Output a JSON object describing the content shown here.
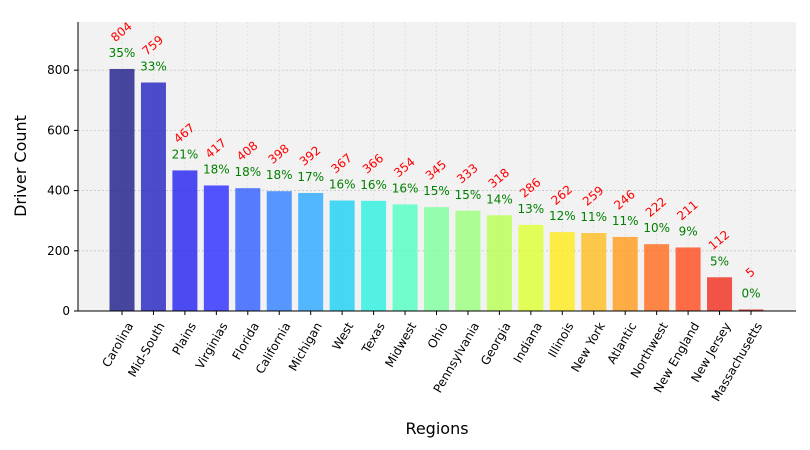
{
  "chart_data": {
    "type": "bar",
    "xlabel": "Regions",
    "ylabel": "Driver Count",
    "ylim": [
      0,
      960
    ],
    "yticks": [
      0,
      200,
      400,
      600,
      800
    ],
    "grid": true,
    "categories": [
      "Carolina",
      "Mid-South",
      "Plains",
      "Virginias",
      "Florida",
      "California",
      "Michigan",
      "West",
      "Texas",
      "Midwest",
      "Ohio",
      "Pennsylvania",
      "Georgia",
      "Indiana",
      "Illinois",
      "New York",
      "Atlantic",
      "Northwest",
      "New England",
      "New Jersey",
      "Massachusetts"
    ],
    "values": [
      804,
      759,
      467,
      417,
      408,
      398,
      392,
      367,
      366,
      354,
      345,
      333,
      318,
      286,
      262,
      259,
      246,
      222,
      211,
      112,
      5
    ],
    "value_labels": [
      "804",
      "759",
      "467",
      "417",
      "408",
      "398",
      "392",
      "367",
      "366",
      "354",
      "345",
      "333",
      "318",
      "286",
      "262",
      "259",
      "246",
      "222",
      "211",
      "112",
      "5"
    ],
    "percent_labels": [
      "35%",
      "33%",
      "21%",
      "18%",
      "18%",
      "18%",
      "17%",
      "16%",
      "16%",
      "16%",
      "15%",
      "15%",
      "14%",
      "13%",
      "12%",
      "11%",
      "11%",
      "10%",
      "9%",
      "5%",
      "0%"
    ],
    "colors": [
      "#1a1a8a",
      "#2020c0",
      "#2020f0",
      "#2a2aff",
      "#2f5cff",
      "#2f80ff",
      "#2aa8ff",
      "#1ad0f5",
      "#2af0e0",
      "#50ffc0",
      "#7cff9c",
      "#98ff7c",
      "#b8ff50",
      "#dcff30",
      "#ffe81a",
      "#ffbc1f",
      "#ff9a1a",
      "#ff6a1a",
      "#ff4a1a",
      "#f02a1a",
      "#d01a1a"
    ],
    "value_label_color": "#ff0000",
    "percent_label_color": "#008000"
  }
}
